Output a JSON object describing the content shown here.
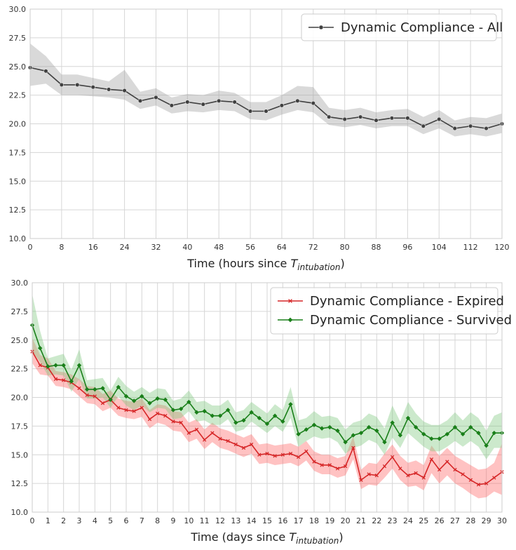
{
  "chart_data": [
    {
      "type": "line",
      "title": "",
      "xlabel": "Time (hours since ",
      "xlabel_sub": "intubation",
      "ylabel": "",
      "xlim": [
        0,
        120
      ],
      "ylim": [
        10.0,
        30.0
      ],
      "x_ticks": [
        0,
        8,
        16,
        24,
        32,
        40,
        48,
        56,
        64,
        72,
        80,
        88,
        96,
        104,
        112,
        120
      ],
      "y_ticks": [
        "10.0",
        "12.5",
        "15.0",
        "17.5",
        "20.0",
        "22.5",
        "25.0",
        "27.5",
        "30.0"
      ],
      "legend_position": "top-right",
      "series": [
        {
          "name": "Dynamic Compliance - All",
          "color": "#404040",
          "band_color": "#a0a0a0",
          "marker": "circle",
          "x": [
            0,
            4,
            8,
            12,
            16,
            20,
            24,
            28,
            32,
            36,
            40,
            44,
            48,
            52,
            56,
            60,
            64,
            68,
            72,
            76,
            80,
            84,
            88,
            92,
            96,
            100,
            104,
            108,
            112,
            116,
            120
          ],
          "values": [
            24.9,
            24.6,
            23.4,
            23.4,
            23.2,
            23.0,
            22.9,
            22.0,
            22.3,
            21.6,
            21.9,
            21.7,
            22.0,
            21.9,
            21.1,
            21.1,
            21.6,
            22.0,
            21.8,
            20.6,
            20.4,
            20.6,
            20.3,
            20.5,
            20.5,
            19.8,
            20.4,
            19.6,
            19.8,
            19.6,
            20.0
          ],
          "lower": [
            23.3,
            23.5,
            22.5,
            22.5,
            22.4,
            22.3,
            22.1,
            21.3,
            21.6,
            20.9,
            21.1,
            21.0,
            21.2,
            21.1,
            20.4,
            20.3,
            20.8,
            21.2,
            21.0,
            19.9,
            19.7,
            19.9,
            19.6,
            19.8,
            19.8,
            19.1,
            19.6,
            18.9,
            19.1,
            18.9,
            19.2
          ],
          "upper": [
            27.0,
            25.9,
            24.3,
            24.3,
            24.0,
            23.7,
            24.7,
            22.8,
            23.1,
            22.3,
            22.6,
            22.5,
            22.9,
            22.7,
            21.9,
            21.9,
            22.5,
            23.3,
            23.2,
            21.4,
            21.2,
            21.4,
            21.0,
            21.2,
            21.3,
            20.6,
            21.2,
            20.3,
            20.6,
            20.5,
            20.9
          ]
        }
      ]
    },
    {
      "type": "line",
      "title": "",
      "xlabel": "Time (days since ",
      "xlabel_sub": "intubation",
      "ylabel": "",
      "xlim": [
        0,
        30
      ],
      "ylim": [
        10.0,
        30.0
      ],
      "x_ticks": [
        0,
        1,
        2,
        3,
        4,
        5,
        6,
        7,
        8,
        9,
        10,
        11,
        12,
        13,
        14,
        15,
        16,
        17,
        18,
        19,
        20,
        21,
        22,
        23,
        24,
        25,
        26,
        27,
        28,
        29,
        30
      ],
      "y_ticks": [
        "10.0",
        "12.5",
        "15.0",
        "17.5",
        "20.0",
        "22.5",
        "25.0",
        "27.5",
        "30.0"
      ],
      "legend_position": "top-right",
      "series": [
        {
          "name": "Dynamic Compliance - Expired",
          "color": "#d62728",
          "band_color": "#ff6666",
          "marker": "x",
          "values": [
            24.0,
            22.8,
            22.6,
            21.6,
            21.5,
            21.3,
            20.8,
            20.2,
            20.1,
            19.5,
            19.8,
            19.1,
            18.9,
            18.8,
            19.1,
            18.1,
            18.6,
            18.4,
            17.9,
            17.8,
            16.9,
            17.2,
            16.3,
            16.9,
            16.4,
            16.2,
            15.9,
            15.6,
            15.9,
            15.0,
            15.1,
            14.9,
            15.0,
            15.1,
            14.8,
            15.3,
            14.4,
            14.1,
            14.1,
            13.8,
            14.0,
            15.6,
            12.8,
            13.3,
            13.2,
            14.0,
            14.8,
            13.8,
            13.2,
            13.4,
            13.0,
            14.6,
            13.7,
            14.4,
            13.7,
            13.3,
            12.8,
            12.4,
            12.5,
            13.0,
            13.5
          ],
          "lower": [
            23.0,
            22.0,
            21.9,
            21.0,
            20.9,
            20.7,
            20.1,
            19.5,
            19.4,
            18.8,
            19.1,
            18.4,
            18.2,
            18.1,
            18.3,
            17.3,
            17.8,
            17.6,
            17.1,
            17.0,
            16.1,
            16.4,
            15.5,
            16.1,
            15.6,
            15.4,
            15.1,
            14.8,
            15.1,
            14.2,
            14.3,
            14.1,
            14.2,
            14.3,
            14.0,
            14.5,
            13.6,
            13.3,
            13.3,
            13.0,
            13.2,
            14.6,
            12.0,
            12.4,
            12.3,
            13.0,
            13.8,
            12.8,
            12.2,
            12.3,
            11.9,
            13.4,
            12.5,
            13.2,
            12.5,
            12.1,
            11.6,
            11.2,
            11.3,
            11.8,
            11.5
          ],
          "upper": [
            25.2,
            23.7,
            23.4,
            22.3,
            22.2,
            22.0,
            21.6,
            21.0,
            20.9,
            20.3,
            20.6,
            19.9,
            19.7,
            19.6,
            19.9,
            18.9,
            19.4,
            19.3,
            18.8,
            18.7,
            17.8,
            18.1,
            17.2,
            17.8,
            17.3,
            17.1,
            16.8,
            16.5,
            16.8,
            15.9,
            16.0,
            15.8,
            15.9,
            16.0,
            15.7,
            16.2,
            15.3,
            15.0,
            15.0,
            14.7,
            14.9,
            16.6,
            13.7,
            14.3,
            14.2,
            15.1,
            15.9,
            14.9,
            14.3,
            14.5,
            14.1,
            15.8,
            14.9,
            15.6,
            14.9,
            14.5,
            14.1,
            13.7,
            13.8,
            14.3,
            16.0
          ]
        },
        {
          "name": "Dynamic Compliance - Survived",
          "color": "#1a7f1a",
          "band_color": "#7fc97f",
          "marker": "diamond",
          "values": [
            26.3,
            24.3,
            22.7,
            22.8,
            22.8,
            21.4,
            22.8,
            20.7,
            20.7,
            20.8,
            19.8,
            20.9,
            20.1,
            19.7,
            20.1,
            19.5,
            19.9,
            19.8,
            18.9,
            19.0,
            19.6,
            18.7,
            18.8,
            18.4,
            18.4,
            18.9,
            17.8,
            18.0,
            18.7,
            18.2,
            17.7,
            18.4,
            17.9,
            19.4,
            16.8,
            17.2,
            17.6,
            17.3,
            17.4,
            17.1,
            16.1,
            16.7,
            16.9,
            17.4,
            17.1,
            16.1,
            17.8,
            16.7,
            18.2,
            17.4,
            16.8,
            16.4,
            16.4,
            16.8,
            17.4,
            16.8,
            17.4,
            16.9,
            15.8,
            16.9,
            16.9
          ],
          "lower": [
            24.0,
            23.1,
            21.9,
            22.0,
            21.9,
            20.5,
            21.6,
            19.9,
            19.9,
            20.0,
            19.1,
            20.1,
            19.3,
            18.9,
            19.3,
            18.7,
            19.1,
            19.0,
            18.1,
            18.2,
            18.8,
            17.9,
            18.0,
            17.6,
            17.6,
            18.1,
            17.0,
            17.2,
            17.9,
            17.4,
            16.9,
            17.5,
            17.0,
            18.2,
            15.7,
            16.2,
            16.6,
            16.4,
            16.5,
            16.1,
            15.1,
            15.6,
            15.8,
            16.3,
            16.0,
            15.0,
            16.5,
            15.6,
            16.9,
            16.3,
            15.7,
            15.3,
            15.3,
            15.7,
            16.2,
            15.7,
            16.2,
            15.7,
            14.6,
            15.6,
            15.6
          ],
          "upper": [
            29.0,
            25.8,
            23.4,
            23.6,
            23.8,
            22.4,
            24.2,
            21.5,
            21.6,
            21.7,
            20.6,
            21.8,
            21.0,
            20.5,
            20.9,
            20.4,
            20.8,
            20.7,
            19.7,
            19.9,
            20.6,
            19.6,
            19.7,
            19.3,
            19.3,
            19.8,
            18.7,
            18.9,
            19.6,
            19.1,
            18.6,
            19.4,
            18.9,
            20.9,
            18.0,
            18.2,
            18.8,
            18.3,
            18.4,
            18.2,
            17.2,
            17.8,
            18.0,
            18.6,
            18.3,
            17.3,
            19.3,
            17.9,
            19.6,
            18.6,
            17.9,
            17.6,
            17.6,
            18.0,
            18.7,
            18.0,
            18.7,
            18.2,
            17.1,
            18.4,
            18.7
          ]
        }
      ]
    }
  ]
}
